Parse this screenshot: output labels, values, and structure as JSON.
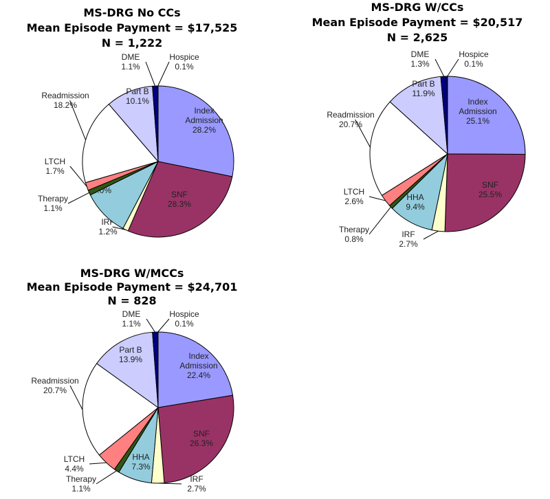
{
  "chart_data": [
    {
      "type": "pie",
      "title": [
        "MS-DRG No CCs",
        "Mean Episode Payment = $17,525",
        "N = 1,222"
      ],
      "slices": [
        {
          "label": "Index Admission",
          "value": 28.2,
          "text": "28.2%"
        },
        {
          "label": "SNF",
          "value": 28.3,
          "text": "28.3%"
        },
        {
          "label": "IRF",
          "value": 1.2,
          "text": "1.2%"
        },
        {
          "label": "HHA",
          "value": 10.0,
          "text": "10.0%"
        },
        {
          "label": "Therapy",
          "value": 1.1,
          "text": "1.1%"
        },
        {
          "label": "LTCH",
          "value": 1.7,
          "text": "1.7%"
        },
        {
          "label": "Readmission",
          "value": 18.2,
          "text": "18.2%"
        },
        {
          "label": "Part B",
          "value": 10.1,
          "text": "10.1%"
        },
        {
          "label": "DME",
          "value": 1.1,
          "text": "1.1%"
        },
        {
          "label": "Hospice",
          "value": 0.1,
          "text": "0.1%"
        }
      ]
    },
    {
      "type": "pie",
      "title": [
        "MS-DRG W/CCs",
        "Mean Episode Payment = $20,517",
        "N = 2,625"
      ],
      "slices": [
        {
          "label": "Index Admission",
          "value": 25.1,
          "text": "25.1%"
        },
        {
          "label": "SNF",
          "value": 25.5,
          "text": "25.5%"
        },
        {
          "label": "IRF",
          "value": 2.7,
          "text": "2.7%"
        },
        {
          "label": "HHA",
          "value": 9.4,
          "text": "9.4%"
        },
        {
          "label": "Therapy",
          "value": 0.8,
          "text": "0.8%"
        },
        {
          "label": "LTCH",
          "value": 2.6,
          "text": "2.6%"
        },
        {
          "label": "Readmission",
          "value": 20.7,
          "text": "20.7%"
        },
        {
          "label": "Part B",
          "value": 11.9,
          "text": "11.9%"
        },
        {
          "label": "DME",
          "value": 1.3,
          "text": "1.3%"
        },
        {
          "label": "Hospice",
          "value": 0.1,
          "text": "0.1%"
        }
      ]
    },
    {
      "type": "pie",
      "title": [
        "MS-DRG W/MCCs",
        "Mean Episode Payment = $24,701",
        "N = 828"
      ],
      "slices": [
        {
          "label": "Index Admission",
          "value": 22.4,
          "text": "22.4%"
        },
        {
          "label": "SNF",
          "value": 26.3,
          "text": "26.3%"
        },
        {
          "label": "IRF",
          "value": 2.7,
          "text": "2.7%"
        },
        {
          "label": "HHA",
          "value": 7.3,
          "text": "7.3%"
        },
        {
          "label": "Therapy",
          "value": 1.1,
          "text": "1.1%"
        },
        {
          "label": "LTCH",
          "value": 4.4,
          "text": "4.4%"
        },
        {
          "label": "Readmission",
          "value": 20.7,
          "text": "20.7%"
        },
        {
          "label": "Part B",
          "value": 13.9,
          "text": "13.9%"
        },
        {
          "label": "DME",
          "value": 1.1,
          "text": "1.1%"
        },
        {
          "label": "Hospice",
          "value": 0.1,
          "text": "0.1%"
        }
      ]
    }
  ],
  "colors": {
    "Index Admission": "#9999FF",
    "SNF": "#993366",
    "IRF": "#FFFFCC",
    "HHA": "#93CDDD",
    "Therapy": "#2F5716",
    "LTCH": "#FF8080",
    "Readmission": "#FFFFFF",
    "Part B": "#CCCCFF",
    "DME": "#000080",
    "Hospice": "#000080"
  }
}
